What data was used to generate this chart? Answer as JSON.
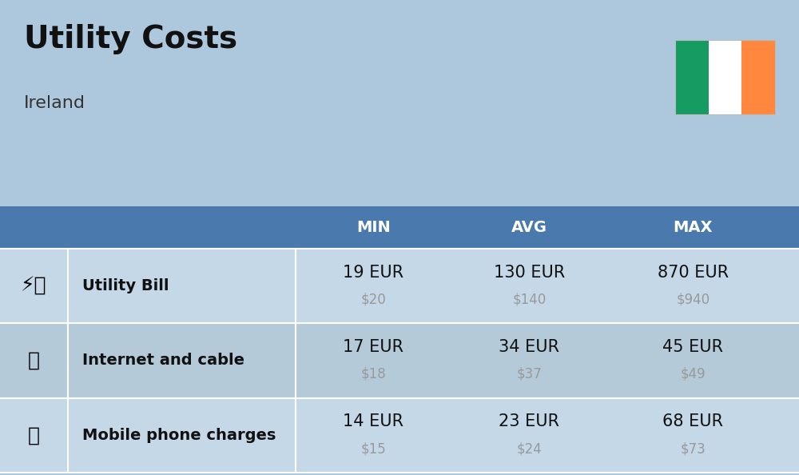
{
  "title": "Utility Costs",
  "subtitle": "Ireland",
  "background_color": "#adc8dc",
  "header_bg_color": "#4a7aad",
  "header_text_color": "#ffffff",
  "row_bg_colors": [
    "#c5d8e8",
    "#b5cad8"
  ],
  "header_labels": [
    "MIN",
    "AVG",
    "MAX"
  ],
  "rows": [
    {
      "label": "Utility Bill",
      "min_eur": "19 EUR",
      "min_usd": "$20",
      "avg_eur": "130 EUR",
      "avg_usd": "$140",
      "max_eur": "870 EUR",
      "max_usd": "$940"
    },
    {
      "label": "Internet and cable",
      "min_eur": "17 EUR",
      "min_usd": "$18",
      "avg_eur": "34 EUR",
      "avg_usd": "$37",
      "max_eur": "45 EUR",
      "max_usd": "$49"
    },
    {
      "label": "Mobile phone charges",
      "min_eur": "14 EUR",
      "min_usd": "$15",
      "avg_eur": "23 EUR",
      "avg_usd": "$24",
      "max_eur": "68 EUR",
      "max_usd": "$73"
    }
  ],
  "ireland_flag_colors": [
    "#169B62",
    "#FFFFFF",
    "#FF883E"
  ],
  "title_fontsize": 28,
  "subtitle_fontsize": 16,
  "header_fontsize": 14,
  "cell_eur_fontsize": 15,
  "cell_usd_fontsize": 12,
  "label_fontsize": 14,
  "usd_color": "#999999",
  "eur_color": "#111111",
  "label_color": "#111111"
}
